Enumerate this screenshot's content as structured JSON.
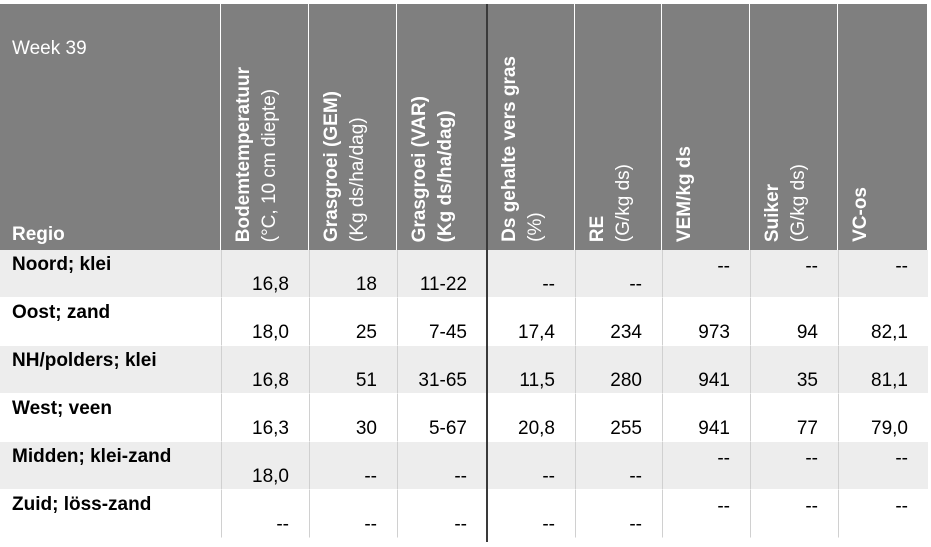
{
  "header": {
    "week": "Week 39",
    "regio": "Regio"
  },
  "columns": [
    {
      "title": "Bodemtemperatuur",
      "unit": "(°C, 10 cm diepte)"
    },
    {
      "title": "Grasgroei (GEM)",
      "unit": "(Kg ds/ha/dag)"
    },
    {
      "title": "Grasgroei (VAR)",
      "unit": "(Kg ds/ha/dag)"
    },
    {
      "title": "Ds gehalte vers gras",
      "unit": "(%)"
    },
    {
      "title": "RE",
      "unit": "(G/kg ds)"
    },
    {
      "title": "VEM/kg ds"
    },
    {
      "title": "Suiker",
      "unit": "(G/kg ds)"
    },
    {
      "title": "VC-os"
    }
  ],
  "rows": [
    {
      "region": "Noord; klei",
      "cells": [
        "16,8",
        "18",
        "11-22",
        "--",
        "--",
        "--",
        "--",
        "--"
      ]
    },
    {
      "region": "Oost; zand",
      "cells": [
        "18,0",
        "25",
        "7-45",
        "17,4",
        "234",
        "973",
        "94",
        "82,1"
      ]
    },
    {
      "region": "NH/polders; klei",
      "cells": [
        "16,8",
        "51",
        "31-65",
        "11,5",
        "280",
        "941",
        "35",
        "81,1"
      ]
    },
    {
      "region": "West; veen",
      "cells": [
        "16,3",
        "30",
        "5-67",
        "20,8",
        "255",
        "941",
        "77",
        "79,0"
      ]
    },
    {
      "region": "Midden; klei-zand",
      "cells": [
        "18,0",
        "--",
        "--",
        "--",
        "--",
        "--",
        "--",
        "--"
      ]
    },
    {
      "region": "Zuid; löss-zand",
      "cells": [
        "--",
        "--",
        "--",
        "--",
        "--",
        "--",
        "--",
        "--"
      ]
    }
  ]
}
